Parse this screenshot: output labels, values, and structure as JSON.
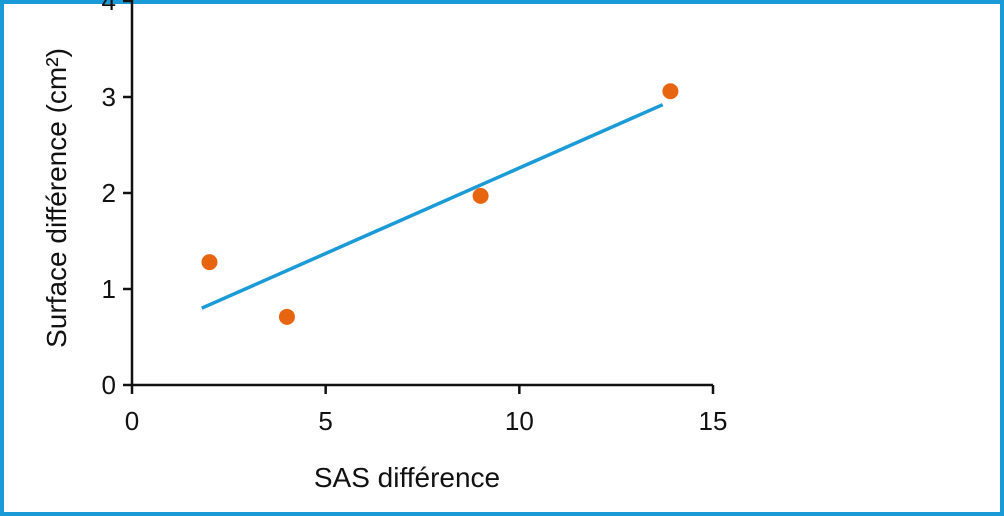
{
  "chart_data": {
    "type": "scatter",
    "xlabel": "SAS différence",
    "ylabel": "Surface différence (cm²)",
    "xlim": [
      0,
      15
    ],
    "ylim": [
      0,
      4
    ],
    "x_ticks": [
      0,
      5,
      10,
      15
    ],
    "y_ticks": [
      0,
      1,
      2,
      3,
      4
    ],
    "grid": false,
    "series": [
      {
        "x": [
          2,
          4,
          9,
          13.9
        ],
        "y": [
          1.28,
          0.71,
          1.97,
          3.06
        ]
      }
    ],
    "trendline": {
      "x": [
        1.8,
        13.7
      ],
      "y": [
        0.8,
        2.92
      ]
    },
    "colors": {
      "points": "#e8650f",
      "trendline": "#1a9ad6",
      "frame": "#1a9ad6",
      "axes": "#111111"
    }
  }
}
